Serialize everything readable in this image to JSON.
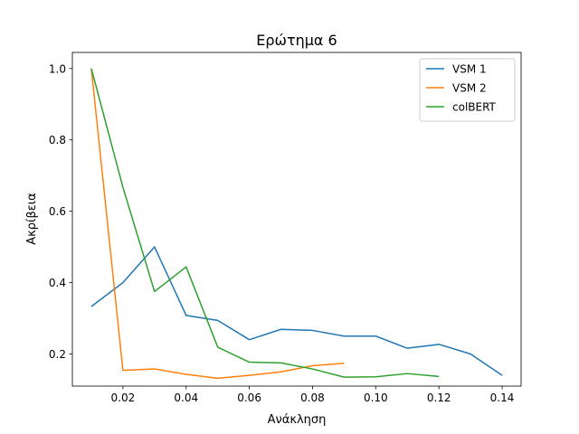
{
  "chart_data": {
    "type": "line",
    "title": "Ερώτημα 6",
    "xlabel": "Ανάκληση",
    "ylabel": "Ακρίβεια",
    "xlim": [
      0.004,
      0.146
    ],
    "ylim": [
      0.11,
      1.045
    ],
    "xticks": [
      "0.02",
      "0.04",
      "0.06",
      "0.08",
      "0.10",
      "0.12",
      "0.14"
    ],
    "yticks": [
      "0.2",
      "0.4",
      "0.6",
      "0.8",
      "1.0"
    ],
    "grid": false,
    "legend_position": "top-right",
    "series": [
      {
        "name": "VSM 1",
        "color": "#1f77b4",
        "x": [
          0.01,
          0.02,
          0.03,
          0.04,
          0.05,
          0.06,
          0.07,
          0.08,
          0.09,
          0.1,
          0.11,
          0.12,
          0.13,
          0.14
        ],
        "y": [
          0.333,
          0.4,
          0.5,
          0.308,
          0.294,
          0.24,
          0.269,
          0.266,
          0.25,
          0.25,
          0.216,
          0.227,
          0.2,
          0.14
        ]
      },
      {
        "name": "VSM 2",
        "color": "#ff7f0e",
        "x": [
          0.01,
          0.02,
          0.03,
          0.04,
          0.05,
          0.06,
          0.07,
          0.08,
          0.09
        ],
        "y": [
          1.0,
          0.154,
          0.158,
          0.143,
          0.132,
          0.14,
          0.15,
          0.167,
          0.174
        ]
      },
      {
        "name": "colBERT",
        "color": "#2ca02c",
        "x": [
          0.01,
          0.02,
          0.03,
          0.04,
          0.05,
          0.06,
          0.07,
          0.08,
          0.09,
          0.1,
          0.11,
          0.12
        ],
        "y": [
          1.0,
          0.667,
          0.375,
          0.444,
          0.219,
          0.177,
          0.175,
          0.158,
          0.135,
          0.136,
          0.145,
          0.137
        ]
      }
    ]
  }
}
